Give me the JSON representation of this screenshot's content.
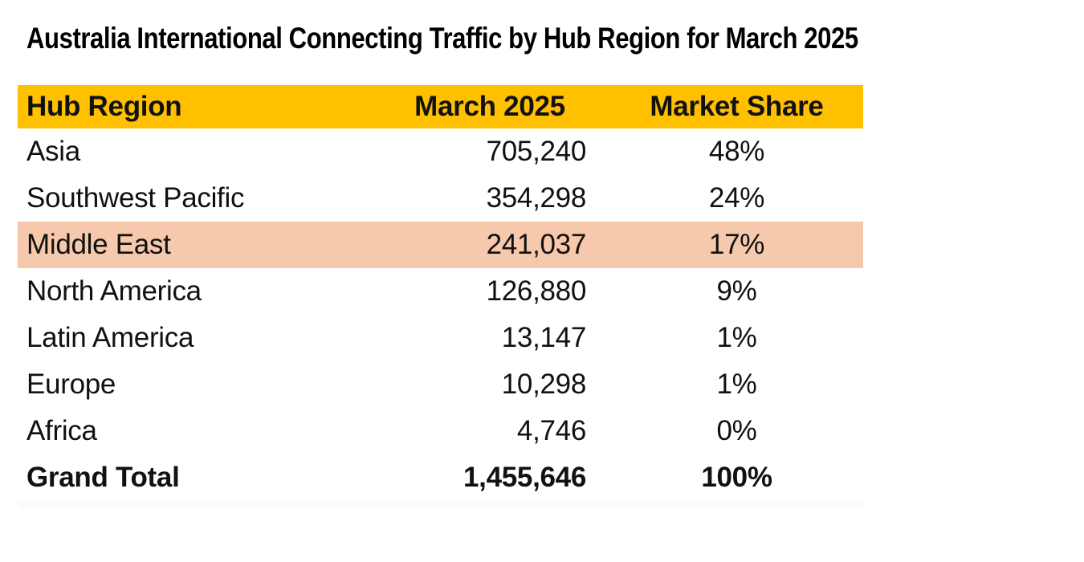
{
  "title": "Australia International Connecting Traffic by Hub Region for March 2025",
  "colors": {
    "header_bg": "#FFC000",
    "highlight_bg": "#F6C8AC",
    "text": "#111111"
  },
  "table": {
    "columns": [
      "Hub Region",
      "March 2025",
      "Market Share"
    ],
    "rows": [
      {
        "region": "Asia",
        "value": "705,240",
        "share": "48%",
        "highlight": false
      },
      {
        "region": "Southwest Pacific",
        "value": "354,298",
        "share": "24%",
        "highlight": false
      },
      {
        "region": "Middle East",
        "value": "241,037",
        "share": "17%",
        "highlight": true
      },
      {
        "region": "North America",
        "value": "126,880",
        "share": "9%",
        "highlight": false
      },
      {
        "region": "Latin America",
        "value": "13,147",
        "share": "1%",
        "highlight": false
      },
      {
        "region": "Europe",
        "value": "10,298",
        "share": "1%",
        "highlight": false
      },
      {
        "region": "Africa",
        "value": "4,746",
        "share": "0%",
        "highlight": false
      }
    ],
    "total": {
      "region": "Grand Total",
      "value": "1,455,646",
      "share": "100%"
    }
  },
  "chart_data": {
    "type": "table",
    "title": "Australia International Connecting Traffic by Hub Region for March 2025",
    "columns": [
      "Hub Region",
      "March 2025",
      "Market Share"
    ],
    "rows": [
      [
        "Asia",
        705240,
        "48%"
      ],
      [
        "Southwest Pacific",
        354298,
        "24%"
      ],
      [
        "Middle East",
        241037,
        "17%"
      ],
      [
        "North America",
        126880,
        "9%"
      ],
      [
        "Latin America",
        13147,
        "1%"
      ],
      [
        "Europe",
        10298,
        "1%"
      ],
      [
        "Africa",
        4746,
        "0%"
      ],
      [
        "Grand Total",
        1455646,
        "100%"
      ]
    ],
    "highlighted_row": "Middle East",
    "layout": {
      "header_bg": "#FFC000",
      "highlight_bg": "#F6C8AC",
      "header_text_bold": true,
      "total_row_bold": true,
      "value_alignment": "right",
      "share_alignment": "center"
    }
  }
}
